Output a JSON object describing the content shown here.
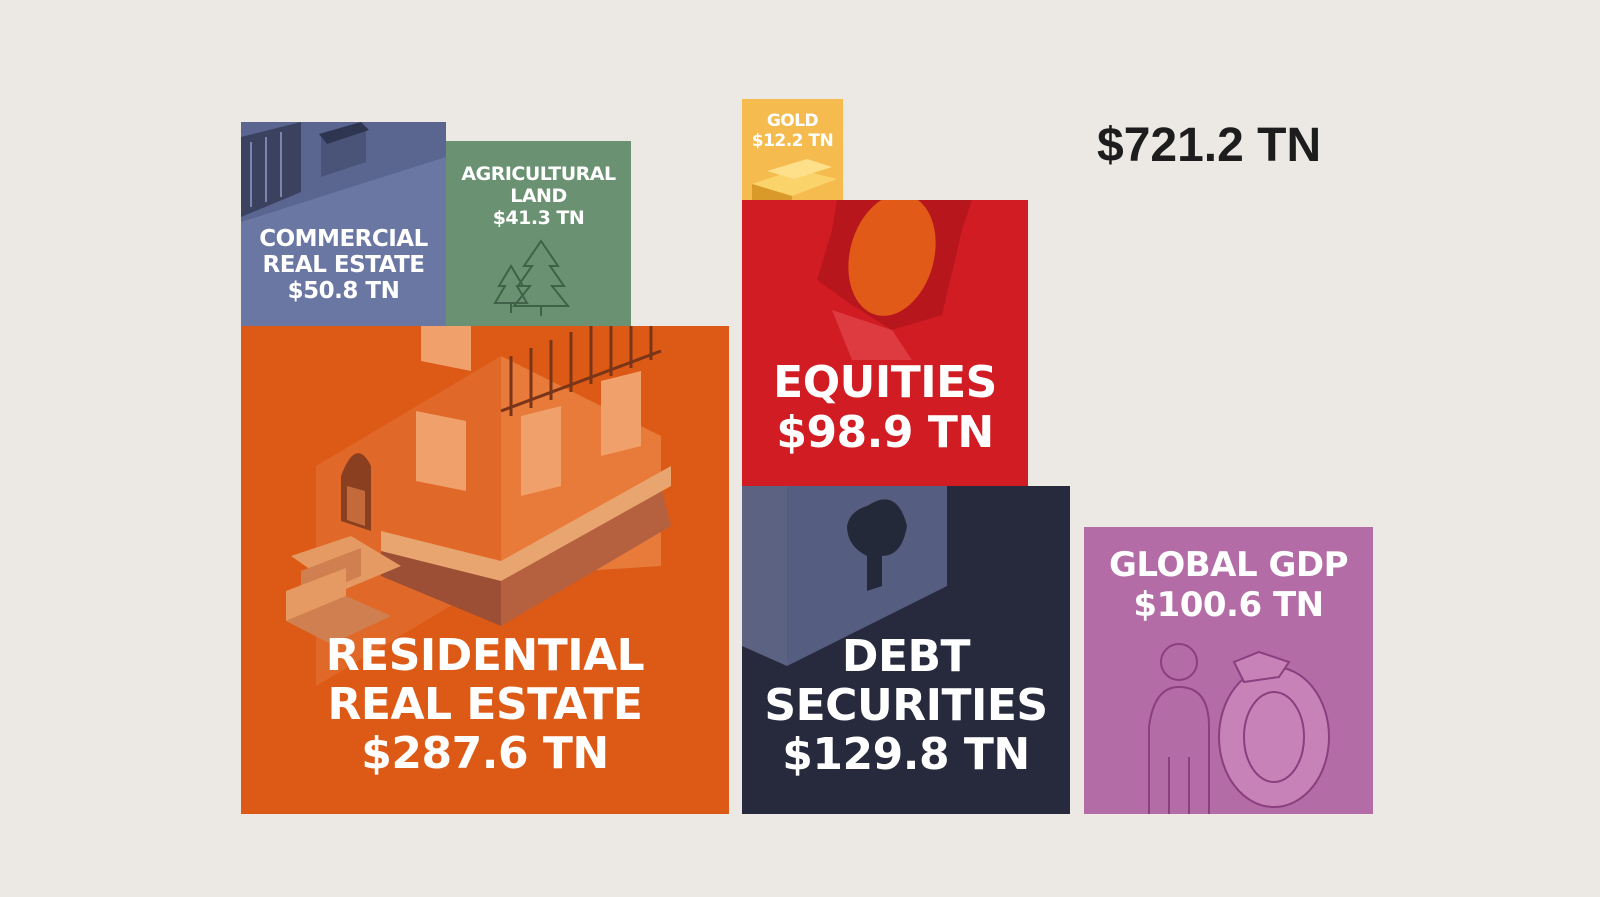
{
  "total_label": "$721.2 TN",
  "chart_data": {
    "type": "treemap",
    "title": "",
    "unit": "TN",
    "total": 721.2,
    "categories": [
      "Residential Real Estate",
      "Commercial Real Estate",
      "Agricultural Land",
      "Gold",
      "Equities",
      "Debt Securities",
      "Global GDP"
    ],
    "values": [
      287.6,
      50.8,
      41.3,
      12.2,
      98.9,
      129.8,
      100.6
    ],
    "blocks": {
      "residential": {
        "lines": [
          "RESIDENTIAL",
          "REAL ESTATE",
          "$287.6 TN"
        ],
        "value": 287.6,
        "color": "#dd5a16",
        "icon": "house-icon"
      },
      "commercial": {
        "lines": [
          "COMMERCIAL",
          "REAL ESTATE",
          "$50.8 TN"
        ],
        "value": 50.8,
        "color": "#6b77a3",
        "icon": "office-building-icon"
      },
      "agricultural": {
        "lines": [
          "AGRICULTURAL",
          "LAND",
          "$41.3 TN"
        ],
        "value": 41.3,
        "color": "#6a9272",
        "icon": "trees-icon"
      },
      "gold": {
        "lines": [
          "GOLD",
          "$12.2 TN"
        ],
        "value": 12.2,
        "color": "#f5bb4e",
        "icon": "gold-bars-icon"
      },
      "equities": {
        "lines": [
          "EQUITIES",
          "$98.9 TN"
        ],
        "value": 98.9,
        "color": "#d01c22",
        "icon": "badge-icon"
      },
      "debt": {
        "lines": [
          "DEBT",
          "SECURITIES",
          "$129.8 TN"
        ],
        "value": 129.8,
        "color": "#262a3c",
        "icon": "keyhole-lock-icon"
      },
      "gdp": {
        "lines": [
          "GLOBAL GDP",
          "$100.6 TN"
        ],
        "value": 100.6,
        "color": "#b46ca6",
        "icon": "person-gear-icon"
      }
    }
  }
}
